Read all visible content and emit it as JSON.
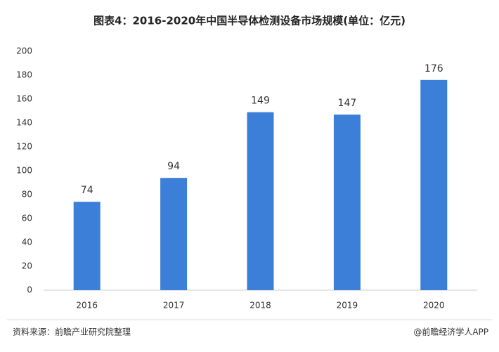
{
  "chart_data": {
    "type": "bar",
    "title": "图表4：2016-2020年中国半导体检测设备市场规模(单位：亿元)",
    "categories": [
      "2016",
      "2017",
      "2018",
      "2019",
      "2020"
    ],
    "values": [
      74,
      94,
      149,
      147,
      176
    ],
    "color": "#3b7fd9",
    "ylim": [
      0,
      200
    ],
    "yticks": [
      0,
      20,
      40,
      60,
      80,
      100,
      120,
      140,
      160,
      180,
      200
    ],
    "grid": false,
    "source": "资料来源：前瞻产业研究院整理",
    "credit": "@前瞻经济学人APP"
  }
}
